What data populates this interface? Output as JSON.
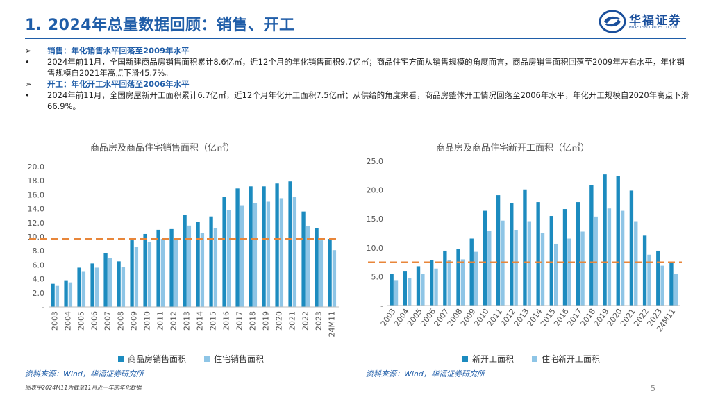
{
  "header": {
    "title": "1. 2024年总量数据回顾：销售、开工",
    "logo_cn": "华福证券",
    "logo_en": "HUAFU SECURITIES CO.,LTD."
  },
  "bullets": [
    {
      "marker": "➢",
      "text": "销售：年化销售水平回落至2009年水平",
      "heading": true
    },
    {
      "marker": "•",
      "text": "2024年前11月，全国新建商品房销售面积累计8.6亿㎡，近12个月的年化销售面积9.7亿㎡；商品住宅方面从销售规模的角度而言，商品房销售面积回落至2009年左右水平，年化销售规模自2021年高点下滑45.7%。",
      "heading": false
    },
    {
      "marker": "➢",
      "text": "开工：年化开工水平回落至2006年水平",
      "heading": true
    },
    {
      "marker": "•",
      "text": "2024年前11月，全国房屋新开工面积累计6.7亿㎡，近12个月年化开工面积7.5亿㎡；从供给的角度来看，商品房整体开工情况回落至2006年水平，年化开工规模自2020年高点下滑66.9%。",
      "heading": false
    }
  ],
  "colors": {
    "series1": "#1c8bbf",
    "series2": "#8ec5e6",
    "ref": "#e8863a",
    "axis": "#bfbfbf"
  },
  "chart_data": [
    {
      "type": "bar",
      "title": "商品房及商品住宅销售面积（亿㎡）",
      "categories": [
        "2003",
        "2004",
        "2005",
        "2006",
        "2007",
        "2008",
        "2009",
        "2010",
        "2011",
        "2012",
        "2013",
        "2014",
        "2015",
        "2016",
        "2017",
        "2018",
        "2019",
        "2020",
        "2021",
        "2022",
        "2023",
        "24M11"
      ],
      "series": [
        {
          "name": "商品房销售面积",
          "values": [
            3.3,
            3.8,
            5.6,
            6.2,
            7.7,
            6.5,
            9.5,
            10.4,
            11.0,
            11.1,
            13.1,
            12.1,
            12.9,
            15.7,
            16.9,
            17.2,
            17.2,
            17.6,
            17.9,
            13.6,
            11.2,
            9.7
          ]
        },
        {
          "name": "住宅销售面积",
          "values": [
            3.0,
            3.5,
            5.1,
            5.6,
            7.0,
            5.7,
            8.6,
            9.3,
            9.7,
            9.8,
            11.6,
            10.5,
            11.2,
            13.8,
            14.5,
            14.8,
            15.0,
            15.5,
            15.7,
            11.5,
            9.5,
            8.1
          ]
        }
      ],
      "reference_line": 9.7,
      "ylim": [
        0,
        20
      ],
      "yticks": [
        "-",
        "2.0",
        "4.0",
        "6.0",
        "8.0",
        "10.0",
        "12.0",
        "14.0",
        "16.0",
        "18.0",
        "20.0"
      ],
      "source": "资料来源：Wind，华福证券研究所"
    },
    {
      "type": "bar",
      "title": "商品房及商品住宅新开工面积（亿㎡）",
      "categories": [
        "2003",
        "2004",
        "2005",
        "2006",
        "2007",
        "2008",
        "2009",
        "2010",
        "2011",
        "2012",
        "2013",
        "2014",
        "2015",
        "2016",
        "2017",
        "2018",
        "2019",
        "2020",
        "2021",
        "2022",
        "2023",
        "24M11"
      ],
      "series": [
        {
          "name": "新开工面积",
          "values": [
            5.5,
            6.0,
            6.8,
            7.9,
            9.5,
            9.8,
            11.6,
            16.4,
            19.1,
            17.7,
            20.1,
            17.9,
            15.5,
            16.7,
            17.9,
            20.9,
            22.7,
            22.4,
            19.9,
            12.1,
            9.5,
            7.5
          ]
        },
        {
          "name": "住宅新开工面积",
          "values": [
            4.4,
            4.8,
            5.5,
            6.4,
            7.9,
            8.0,
            9.3,
            12.9,
            14.7,
            13.1,
            14.6,
            12.5,
            10.7,
            11.6,
            12.8,
            15.4,
            16.8,
            16.4,
            14.6,
            8.8,
            6.9,
            5.5
          ]
        }
      ],
      "reference_line": 7.5,
      "ylim": [
        0,
        25
      ],
      "yticks": [
        "-",
        "5.0",
        "10.0",
        "15.0",
        "20.0",
        "25.0"
      ],
      "source": "资料来源：Wind，华福证券研究所"
    }
  ],
  "footer": {
    "note": "图表中2024M11为截至11月近一年的年化数据",
    "page": "5"
  }
}
